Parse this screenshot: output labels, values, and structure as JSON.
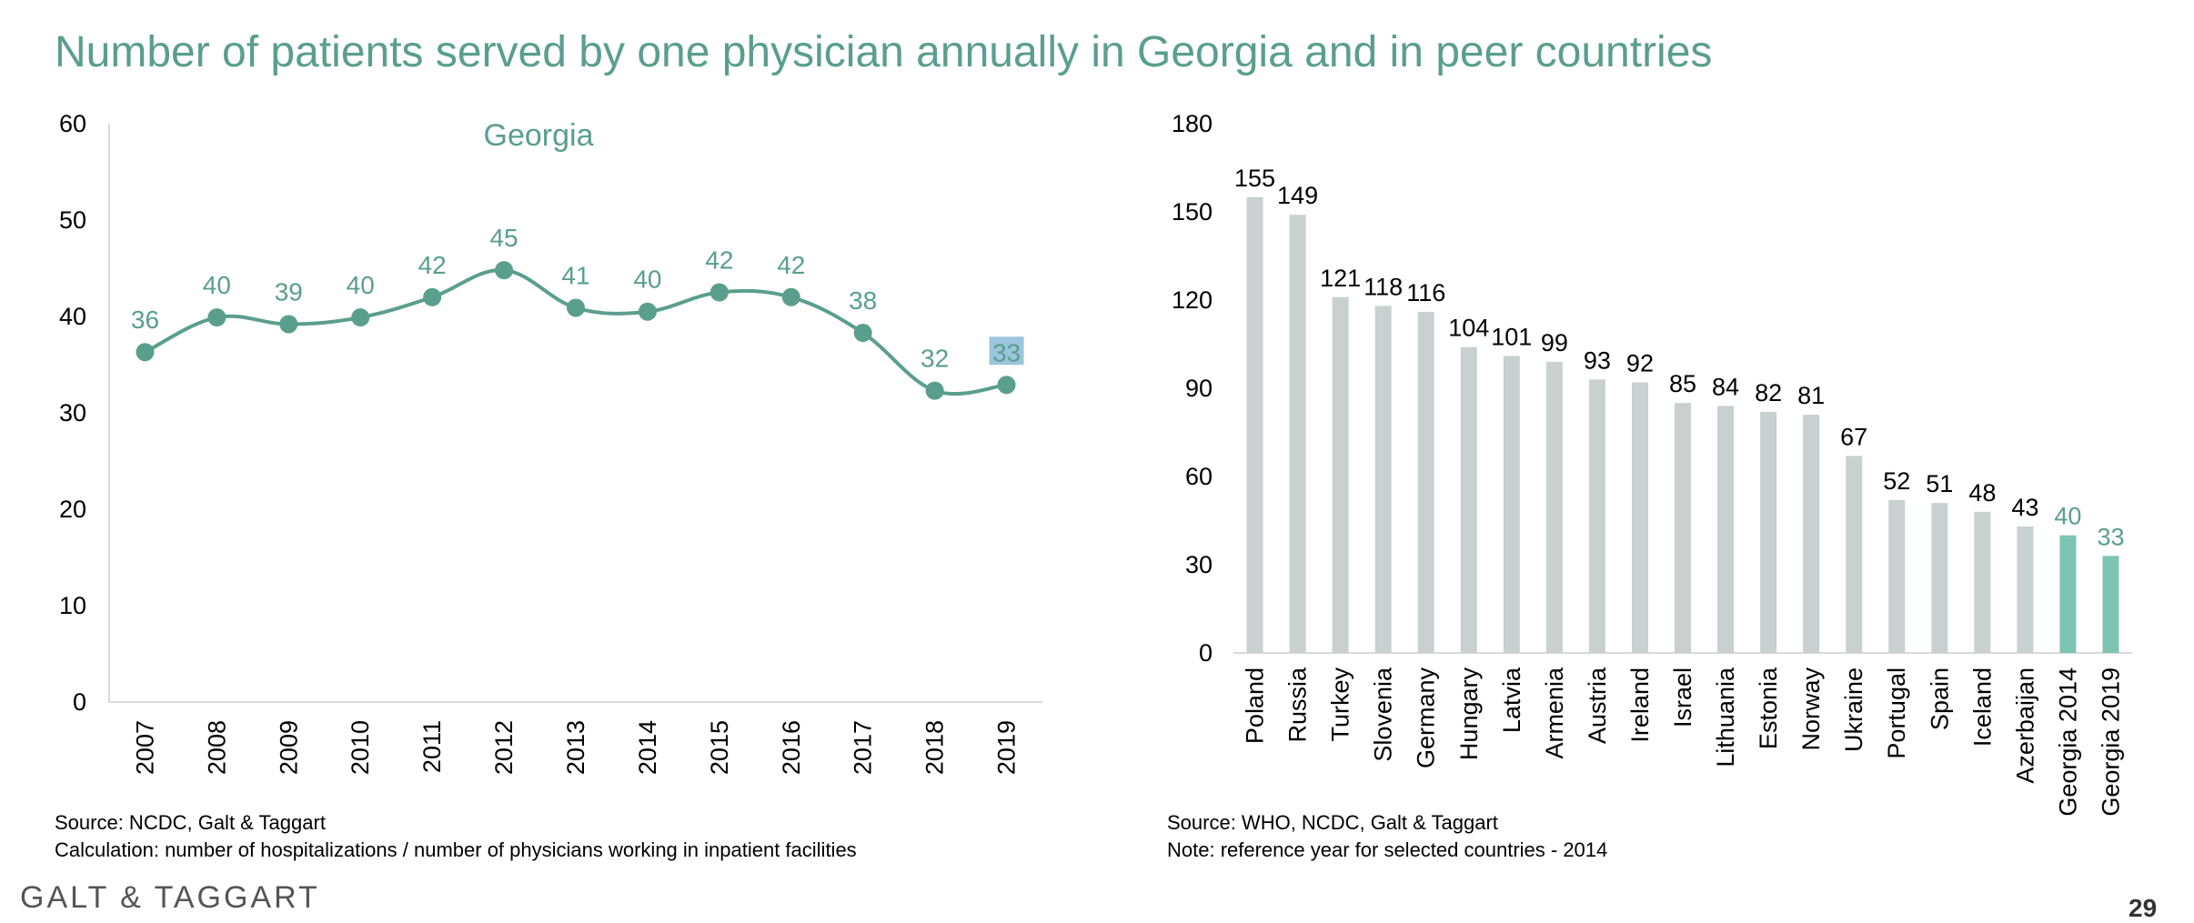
{
  "title": "Number of patients served by one physician annually in Georgia and in peer countries",
  "colors": {
    "accent": "#5a9e8e",
    "bar_gray": "#c8d0d0",
    "bar_georgia": "#7ec4b3",
    "highlight": "#9cc5dd"
  },
  "chart_data": [
    {
      "type": "line",
      "title": "Georgia",
      "x": [
        "2007",
        "2008",
        "2009",
        "2010",
        "2011",
        "2012",
        "2013",
        "2014",
        "2015",
        "2016",
        "2017",
        "2018",
        "2019"
      ],
      "series": [
        {
          "values": [
            36.3,
            39.9,
            39.2,
            39.9,
            42.0,
            44.8,
            40.9,
            40.5,
            42.5,
            42.0,
            38.3,
            32.3,
            32.9
          ],
          "labels": [
            "36",
            "40",
            "39",
            "40",
            "42",
            "45",
            "41",
            "40",
            "42",
            "42",
            "38",
            "32",
            "33"
          ]
        }
      ],
      "ylim": [
        0,
        60
      ],
      "yticks": [
        "0",
        "10",
        "20",
        "30",
        "40",
        "50",
        "60"
      ],
      "grid": false,
      "smooth": true
    },
    {
      "type": "bar",
      "categories": [
        "Poland",
        "Russia",
        "Turkey",
        "Slovenia",
        "Germany",
        "Hungary",
        "Latvia",
        "Armenia",
        "Austria",
        "Ireland",
        "Israel",
        "Lithuania",
        "Estonia",
        "Norway",
        "Ukraine",
        "Portugal",
        "Spain",
        "Iceland",
        "Azerbaijan",
        "Georgia 2014",
        "Georgia 2019"
      ],
      "values": [
        155,
        149,
        121,
        118,
        116,
        104,
        101,
        99,
        93,
        92,
        85,
        84,
        82,
        81,
        67,
        52,
        51,
        48,
        43,
        40,
        33
      ],
      "highlighted": [
        "Georgia 2014",
        "Georgia 2019"
      ],
      "ylim": [
        0,
        180
      ],
      "yticks": [
        "0",
        "30",
        "60",
        "90",
        "120",
        "150",
        "180"
      ],
      "grid": false
    }
  ],
  "left_source": {
    "line1": "Source: NCDC, Galt & Taggart",
    "line2": "Calculation: number of hospitalizations / number of physicians working in inpatient facilities"
  },
  "right_source": {
    "line1": "Source: WHO, NCDC, Galt & Taggart",
    "line2": "Note: reference year for selected countries - 2014"
  },
  "logo_text": "GALT & TAGGART",
  "page_number": "29"
}
